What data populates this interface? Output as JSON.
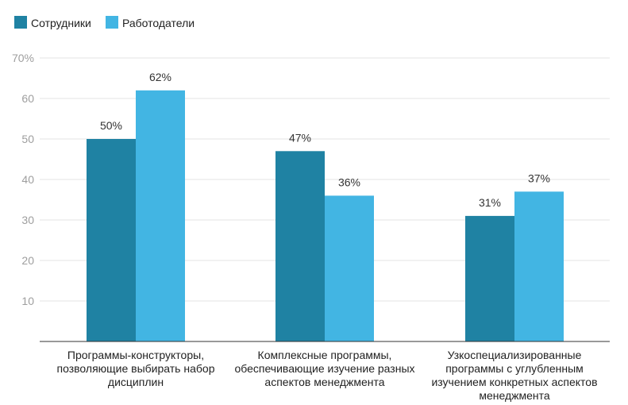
{
  "chart_data": {
    "type": "bar",
    "ylim": [
      0,
      70
    ],
    "yticks": [
      10,
      20,
      30,
      40,
      50,
      60,
      70
    ],
    "ytick_labels": [
      "10",
      "20",
      "30",
      "40",
      "50",
      "60",
      "70%"
    ],
    "grid": true,
    "legend_position": "top-left",
    "categories": [
      "Программы-конструкторы, позволяющие выбирать набор дисциплин",
      "Комплексные программы, обеспечивающие изучение разных аспектов менеджмента",
      "Узкоспециализированные программы с углубленным изучением конкретных аспектов менеджмента"
    ],
    "series": [
      {
        "name": "Сотрудники",
        "color": "#1f82a3",
        "values": [
          50,
          47,
          31
        ],
        "labels": [
          "50%",
          "47%",
          "31%"
        ]
      },
      {
        "name": "Работодатели",
        "color": "#42b5e3",
        "values": [
          62,
          36,
          37
        ],
        "labels": [
          "62%",
          "36%",
          "37%"
        ]
      }
    ]
  }
}
